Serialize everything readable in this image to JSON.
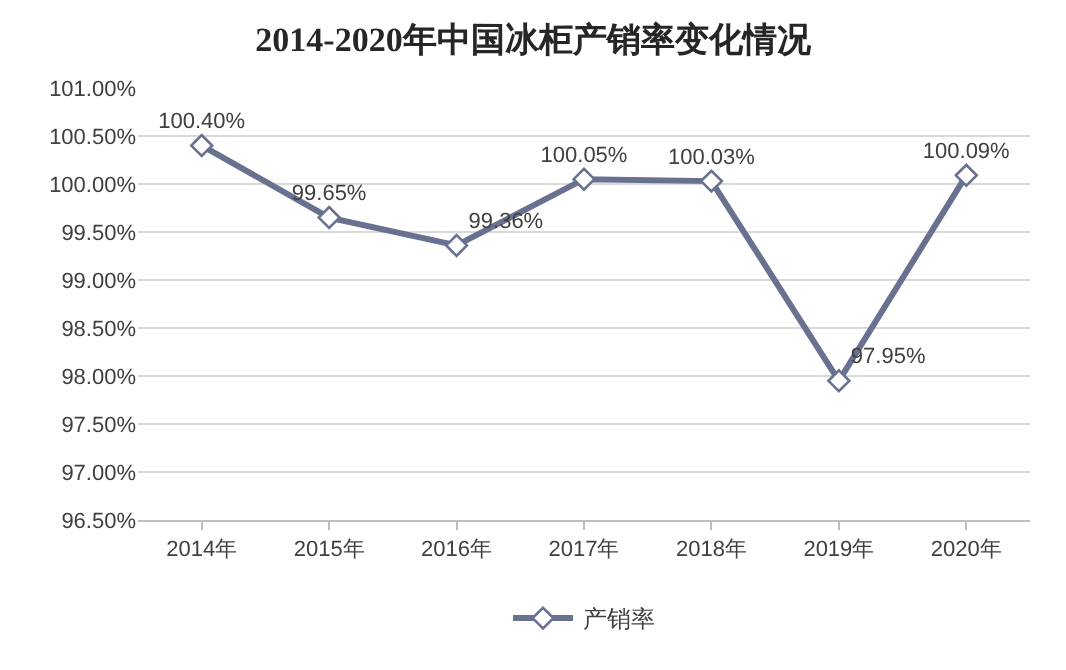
{
  "chart_data": {
    "type": "line",
    "title": "2014-2020年中国冰柜产销率变化情况",
    "categories": [
      "2014年",
      "2015年",
      "2016年",
      "2017年",
      "2018年",
      "2019年",
      "2020年"
    ],
    "series": [
      {
        "name": "产销率",
        "color": "#68718f",
        "values": [
          100.4,
          99.65,
          99.36,
          100.05,
          100.03,
          97.95,
          100.09
        ],
        "value_labels": [
          "100.40%",
          "99.65%",
          "99.36%",
          "100.05%",
          "100.03%",
          "97.95%",
          "100.09%"
        ]
      }
    ],
    "ylim": [
      96.5,
      101.0
    ],
    "yticks": [
      {
        "value": 96.5,
        "label": "96.50%"
      },
      {
        "value": 97.0,
        "label": "97.00%"
      },
      {
        "value": 97.5,
        "label": "97.50%"
      },
      {
        "value": 98.0,
        "label": "98.00%"
      },
      {
        "value": 98.5,
        "label": "98.50%"
      },
      {
        "value": 99.0,
        "label": "99.00%"
      },
      {
        "value": 99.5,
        "label": "99.50%"
      },
      {
        "value": 100.0,
        "label": "100.00%"
      },
      {
        "value": 100.5,
        "label": "100.50%"
      },
      {
        "value": 101.0,
        "label": "101.00%"
      }
    ],
    "grid": "y",
    "legend": "bottom",
    "marker": "diamond",
    "line_style": "solid"
  }
}
